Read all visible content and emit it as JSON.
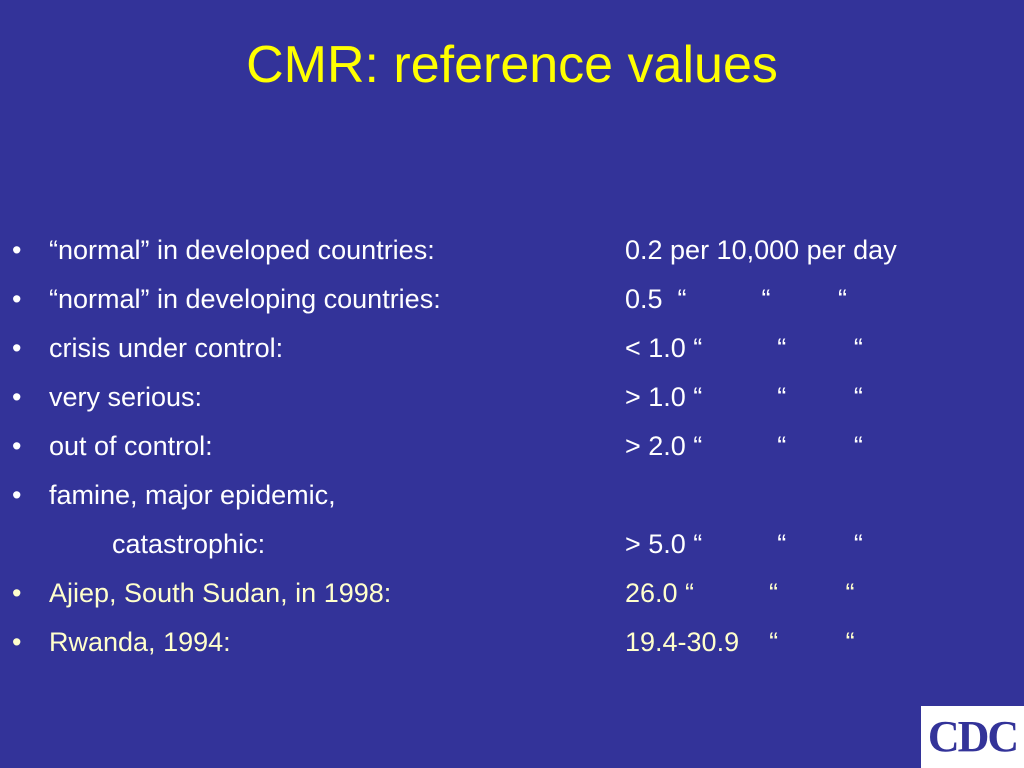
{
  "slide": {
    "title": "CMR: reference values"
  },
  "bullets": [
    {
      "bullet": "•",
      "label": "“normal” in developed countries:",
      "value": "0.2 per 10,000 per day"
    },
    {
      "bullet": "•",
      "label": "“normal” in developing countries:",
      "value": "0.5  “          “         “"
    },
    {
      "bullet": "•",
      "label": "crisis under control:",
      "value": "< 1.0 “          “         “"
    },
    {
      "bullet": "•",
      "label": "very serious:",
      "value": "> 1.0 “          “         “"
    },
    {
      "bullet": "•",
      "label": "out of control:",
      "value": "> 2.0 “          “         “"
    },
    {
      "bullet": "•",
      "label": "famine, major epidemic,",
      "value": ""
    },
    {
      "bullet": "",
      "label": "catastrophic:",
      "value": "> 5.0 “          “         “"
    },
    {
      "bullet": "•",
      "label": "Ajiep, South Sudan, in 1998:",
      "value": "26.0 “          “         “"
    },
    {
      "bullet": "•",
      "label": "Rwanda, 1994:",
      "value": "19.4-30.9    “         “"
    }
  ],
  "logo": {
    "text": "CDC"
  },
  "colors": {
    "background": "#333399",
    "title": "#ffff00",
    "text": "#ffffff",
    "highlight_text": "#ffffcc"
  }
}
